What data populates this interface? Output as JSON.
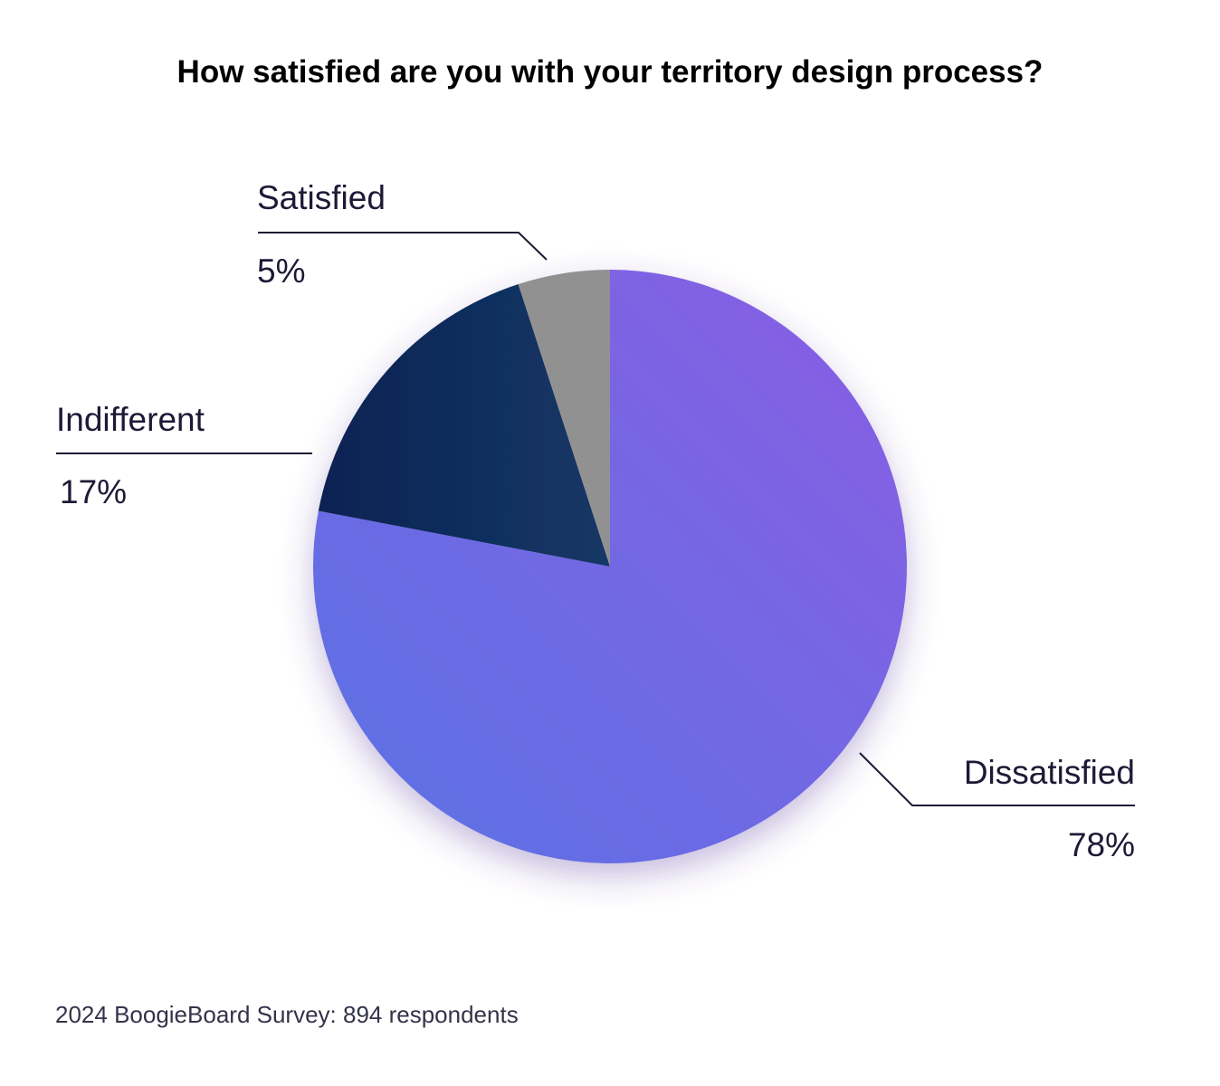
{
  "chart_data": {
    "type": "pie",
    "title": "How satisfied are you with your territory design process?",
    "start_angle": "12 o'clock",
    "direction": "clockwise",
    "slices": [
      {
        "label": "Dissatisfied",
        "value": 78,
        "value_label": "78%",
        "color": "#6f66e2"
      },
      {
        "label": "Indifferent",
        "value": 17,
        "value_label": "17%",
        "color": "#0f2c5c"
      },
      {
        "label": "Satisfied",
        "value": 5,
        "value_label": "5%",
        "color": "#919191"
      }
    ]
  },
  "footer": "2024 BoogieBoard Survey: 894 respondents"
}
